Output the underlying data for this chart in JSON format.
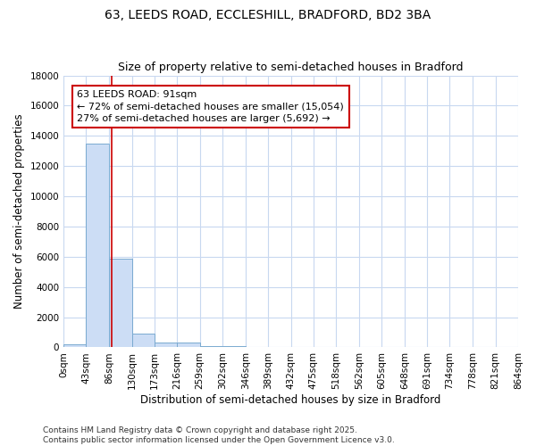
{
  "title_line1": "63, LEEDS ROAD, ECCLESHILL, BRADFORD, BD2 3BA",
  "title_line2": "Size of property relative to semi-detached houses in Bradford",
  "xlabel": "Distribution of semi-detached houses by size in Bradford",
  "ylabel": "Number of semi-detached properties",
  "bar_edges": [
    0,
    43,
    86,
    130,
    173,
    216,
    259,
    302,
    346,
    389,
    432,
    475,
    518,
    562,
    605,
    648,
    691,
    734,
    778,
    821,
    864
  ],
  "bar_heights": [
    200,
    13500,
    5900,
    900,
    300,
    300,
    100,
    100,
    0,
    0,
    0,
    0,
    0,
    0,
    0,
    0,
    0,
    0,
    0,
    0
  ],
  "bar_color": "#ccddf5",
  "bar_edge_color": "#7aaad0",
  "background_color": "#ffffff",
  "plot_bg_color": "#ffffff",
  "grid_color": "#c8d8f0",
  "red_line_x": 91,
  "ylim": [
    0,
    18000
  ],
  "yticks": [
    0,
    2000,
    4000,
    6000,
    8000,
    10000,
    12000,
    14000,
    16000,
    18000
  ],
  "annotation_title": "63 LEEDS ROAD: 91sqm",
  "annotation_line1": "← 72% of semi-detached houses are smaller (15,054)",
  "annotation_line2": "27% of semi-detached houses are larger (5,692) →",
  "annotation_box_color": "#ffffff",
  "annotation_box_edge_color": "#cc0000",
  "footer_line1": "Contains HM Land Registry data © Crown copyright and database right 2025.",
  "footer_line2": "Contains public sector information licensed under the Open Government Licence v3.0.",
  "title_fontsize": 10,
  "subtitle_fontsize": 9,
  "axis_label_fontsize": 8.5,
  "tick_fontsize": 7.5,
  "annotation_fontsize": 8,
  "footer_fontsize": 6.5
}
